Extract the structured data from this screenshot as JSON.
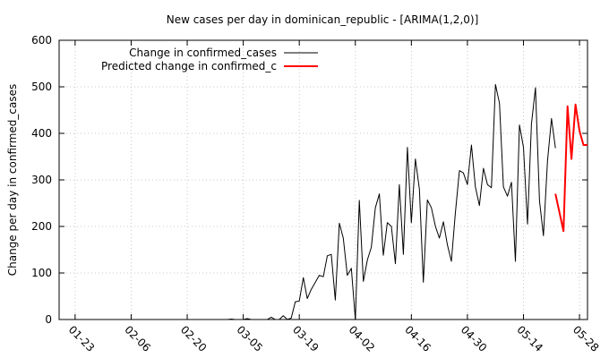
{
  "chart_data": {
    "type": "line",
    "title": "New cases per day in dominican_republic -  [ARIMA(1,2,0)]",
    "xlabel": "",
    "ylabel": "Change per day in confirmed_cases",
    "ylim": [
      0,
      600
    ],
    "yticks": [
      0,
      100,
      200,
      300,
      400,
      500,
      600
    ],
    "xticks": [
      "01-23",
      "02-06",
      "02-20",
      "03-05",
      "03-19",
      "04-02",
      "04-16",
      "04-30",
      "05-14",
      "05-28"
    ],
    "grid": true,
    "legend_position": "top-left",
    "series": [
      {
        "name": "Change in confirmed_cases",
        "color": "#000000",
        "x": [
          "01-23",
          "01-24",
          "01-25",
          "01-26",
          "01-27",
          "01-28",
          "01-29",
          "01-30",
          "01-31",
          "02-01",
          "02-02",
          "02-03",
          "02-04",
          "02-05",
          "02-06",
          "02-07",
          "02-08",
          "02-09",
          "02-10",
          "02-11",
          "02-12",
          "02-13",
          "02-14",
          "02-15",
          "02-16",
          "02-17",
          "02-18",
          "02-19",
          "02-20",
          "02-21",
          "02-22",
          "02-23",
          "02-24",
          "02-25",
          "02-26",
          "02-27",
          "02-28",
          "02-29",
          "03-01",
          "03-02",
          "03-03",
          "03-04",
          "03-05",
          "03-06",
          "03-07",
          "03-08",
          "03-09",
          "03-10",
          "03-11",
          "03-12",
          "03-13",
          "03-14",
          "03-15",
          "03-16",
          "03-17",
          "03-18",
          "03-19",
          "03-20",
          "03-21",
          "03-22",
          "03-23",
          "03-24",
          "03-25",
          "03-26",
          "03-27",
          "03-28",
          "03-29",
          "03-30",
          "03-31",
          "04-01",
          "04-02",
          "04-03",
          "04-04",
          "04-05",
          "04-06",
          "04-07",
          "04-08",
          "04-09",
          "04-10",
          "04-11",
          "04-12",
          "04-13",
          "04-14",
          "04-15",
          "04-16",
          "04-17",
          "04-18",
          "04-19",
          "04-20",
          "04-21",
          "04-22",
          "04-23",
          "04-24",
          "04-25",
          "04-26",
          "04-27",
          "04-28",
          "04-29",
          "04-30",
          "05-01",
          "05-02",
          "05-03",
          "05-04",
          "05-05",
          "05-06",
          "05-07",
          "05-08",
          "05-09",
          "05-10",
          "05-11",
          "05-12",
          "05-13",
          "05-14",
          "05-15",
          "05-16",
          "05-17",
          "05-18",
          "05-19",
          "05-20",
          "05-21",
          "05-22"
        ],
        "values": [
          0,
          0,
          0,
          0,
          0,
          0,
          0,
          0,
          0,
          0,
          0,
          0,
          0,
          0,
          0,
          0,
          0,
          0,
          0,
          0,
          0,
          0,
          0,
          0,
          0,
          0,
          0,
          0,
          0,
          0,
          0,
          0,
          0,
          0,
          0,
          0,
          0,
          0,
          0,
          1,
          0,
          0,
          0,
          2,
          0,
          0,
          0,
          0,
          0,
          5,
          0,
          0,
          8,
          0,
          3,
          38,
          40,
          90,
          45,
          65,
          80,
          95,
          92,
          137,
          140,
          42,
          207,
          175,
          95,
          110,
          0,
          256,
          82,
          128,
          155,
          240,
          270,
          138,
          208,
          200,
          120,
          290,
          140,
          370,
          208,
          345,
          280,
          80,
          257,
          240,
          200,
          175,
          210,
          160,
          125,
          230,
          320,
          315,
          290,
          375,
          285,
          245,
          325,
          290,
          283,
          505,
          465,
          285,
          265,
          295,
          125,
          418,
          370,
          205,
          420,
          498,
          255,
          180,
          340,
          432,
          368
        ]
      },
      {
        "name": "Predicted change in confirmed_c",
        "color": "#ff0000",
        "x": [
          "05-22",
          "05-23",
          "05-24",
          "05-25",
          "05-26",
          "05-27",
          "05-28",
          "05-29",
          "05-30"
        ],
        "values": [
          270,
          230,
          190,
          458,
          345,
          462,
          405,
          375,
          375
        ]
      }
    ]
  }
}
